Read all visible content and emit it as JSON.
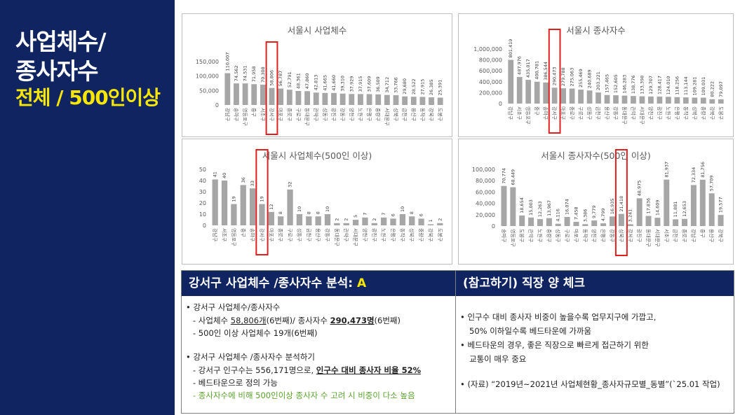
{
  "sidebar": {
    "line1": "사업체수/",
    "line2": "종사자수",
    "line3": "전체 / 500인이상"
  },
  "colors": {
    "navy": "#0f2461",
    "yellow": "#f7e600",
    "bar": "#a6a6a6",
    "highlight": "#e02020",
    "green": "#5aa02c"
  },
  "chart_data": [
    {
      "type": "bar",
      "title": "서울시 사업체수",
      "categories": [
        "강남구",
        "송파구",
        "영등포구",
        "중구",
        "서초구",
        "강서구",
        "마포구",
        "종로구",
        "구로구",
        "동대문구",
        "관악구",
        "성동구",
        "광진구",
        "강동구",
        "양천구",
        "노원구",
        "은평구",
        "중랑구",
        "서대문구",
        "성북구",
        "금천구",
        "용산구",
        "동작구",
        "강북구",
        "도봉구"
      ],
      "values": [
        110007,
        74562,
        74531,
        71958,
        70308,
        58806,
        56787,
        52791,
        48361,
        47860,
        42813,
        41665,
        41660,
        39310,
        37929,
        37915,
        37609,
        36509,
        34712,
        33766,
        29680,
        28522,
        27915,
        26385,
        25391
      ],
      "value_labels": [
        "110,007",
        "74,562",
        "74,531",
        "71,958",
        "70,308",
        "58,806",
        "56,787",
        "52,791",
        "48,361",
        "47,860",
        "42,813",
        "41,665",
        "41,660",
        "39,310",
        "37,929",
        "37,915",
        "37,609",
        "36,509",
        "34,712",
        "33,766",
        "29,680",
        "28,522",
        "27,915",
        "26,385",
        "25,391"
      ],
      "yticks": [
        "0",
        "50,000",
        "100,000",
        "150,000"
      ],
      "ylim": [
        0,
        150000
      ],
      "highlight_index": 5
    },
    {
      "type": "bar",
      "title": "서울시 종사자수",
      "categories": [
        "강남구",
        "서초구",
        "영등포구",
        "중구",
        "송파구",
        "강서구",
        "마포구",
        "종로구",
        "구로구",
        "성동구",
        "금천구",
        "용산구",
        "강동구",
        "동대문구",
        "관악구",
        "서대문구",
        "양천구",
        "광진구",
        "노원구",
        "은평구",
        "동작구",
        "성북구",
        "중랑구",
        "강북구",
        "도봉구"
      ],
      "values": [
        801419,
        487976,
        435017,
        400781,
        386544,
        290473,
        279788,
        275063,
        255469,
        240689,
        203221,
        157465,
        152605,
        146283,
        138776,
        133398,
        129707,
        128417,
        124010,
        118256,
        113144,
        109281,
        109031,
        80222,
        79097
      ],
      "value_labels": [
        "801,419",
        "487,976",
        "435,017",
        "400,781",
        "386,544",
        "290,473",
        "279,788",
        "275,063",
        "255,469",
        "240,689",
        "203,221",
        "157,465",
        "152,605",
        "146,283",
        "138,776",
        "133,398",
        "129,707",
        "128,417",
        "124,010",
        "118,256",
        "113,144",
        "109,281",
        "109,031",
        "80,222",
        "79,097"
      ],
      "yticks": [
        "0",
        "200,000",
        "400,000",
        "600,000",
        "800,000",
        "1,000,000"
      ],
      "ylim": [
        0,
        1000000
      ],
      "highlight_index": 5
    },
    {
      "type": "bar",
      "title": "서울시 사업체수(500인 이상)",
      "categories": [
        "강남구",
        "서초구",
        "영등포구",
        "중구",
        "송파구",
        "강서구",
        "마포구",
        "종로구",
        "구로구",
        "성동구",
        "금천구",
        "용산구",
        "강동구",
        "동대문구",
        "관악구",
        "서대문구",
        "양천구",
        "광진구",
        "노원구",
        "은평구",
        "동작구",
        "성북구",
        "중랑구",
        "강북구",
        "도봉구"
      ],
      "values": [
        41,
        40,
        19,
        36,
        33,
        19,
        12,
        8,
        32,
        10,
        8,
        8,
        10,
        2,
        2,
        5,
        7,
        2,
        7,
        6,
        10,
        8,
        6,
        1,
        2
      ],
      "value_labels": [
        "41",
        "40",
        "19",
        "36",
        "33",
        "19",
        "12",
        "8",
        "32",
        "10",
        "8",
        "8",
        "10",
        "2",
        "2",
        "5",
        "7",
        "2",
        "7",
        "6",
        "10",
        "8",
        "6",
        "1",
        "2"
      ],
      "yticks": [
        "0",
        "10",
        "20",
        "30",
        "40",
        "50"
      ],
      "ylim": [
        0,
        50
      ],
      "highlight_index": 5
    },
    {
      "type": "bar",
      "title": "서울시 종사자수(500인 이상)",
      "categories": [
        "송파구",
        "영등포구",
        "도봉구",
        "관악구",
        "노원구",
        "중랑구",
        "성동구",
        "구로구",
        "마포구",
        "동작구",
        "양천구",
        "은평구",
        "강동구",
        "성북구",
        "강서구",
        "광진구",
        "동대문구",
        "서대문구",
        "서초구",
        "금천구",
        "종로구",
        "강남구",
        "중구",
        "용산구",
        "강북구"
      ],
      "values": [
        70774,
        68449,
        18654,
        15003,
        12263,
        13967,
        4116,
        16074,
        7458,
        3386,
        9779,
        4799,
        16935,
        21418,
        3241,
        48975,
        17836,
        14609,
        81937,
        11881,
        12653,
        72334,
        81756,
        57709,
        19577
      ],
      "value_labels": [
        "70,774",
        "68,449",
        "18,654",
        "15,003",
        "12,263",
        "13,967",
        "4,116",
        "16,074",
        "7,458",
        "3,386",
        "9,779",
        "4,799",
        "16,935",
        "21,418",
        "3,241",
        "48,975",
        "17,836",
        "14,609",
        "81,937",
        "11,881",
        "12,653",
        "72,334",
        "81,756",
        "57,709",
        "19,577"
      ],
      "yticks": [
        "0",
        "20,000",
        "40,000",
        "60,000",
        "80,000",
        "100,000"
      ],
      "ylim": [
        0,
        100000
      ],
      "highlight_index": 13
    }
  ],
  "analysis": {
    "header_main": "강서구 사업체수 /종사자수 분석: ",
    "header_grade": "A",
    "b1": "•  강서구 사업체수/종사자수",
    "b1a_pre": "- 사업체수 ",
    "b1a_biz": "58,806개",
    "b1a_mid": "(6번째)/ 종사자수 ",
    "b1a_emp": "290,473명",
    "b1a_post": "(6번째)",
    "b1b": "- 500인 이상 사업체수 19개(6번째)",
    "b2": "•  강서구   사업체수 /종사자수 분석하기",
    "b2a_pre": "- 강서구 인구수는 556,171명으로, ",
    "b2a_bold": "인구수 대비 종사자 비율 52%",
    "b2b": "- 베드타운으로 정의 가능",
    "b2c": "- 종사자수에 비해 500인이상 종사자 수 고려 시 비중이 다소 높음"
  },
  "reference": {
    "header": "(참고하기) 직장 양 체크",
    "p1a": "•  인구수 대비 종사자 비중이 높을수록 업무지구에 가깝고,",
    "p1b": "50% 이하일수록 베드타운에 가까움",
    "p2a": "•  베드타운의 경우, 좋은 직장으로 빠르게 접근하기 위한",
    "p2b": "교통이 매우 중요",
    "p3": "•  (자료) “2019년~2021년 사업체현황_종사자규모별_동별”(`25.01 작업)"
  }
}
